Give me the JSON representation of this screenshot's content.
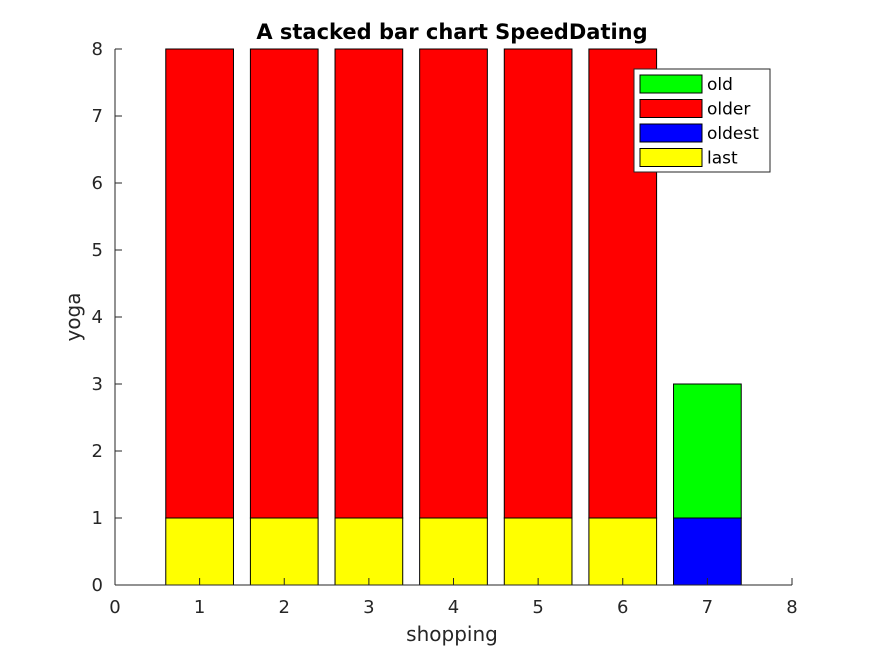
{
  "chart_data": {
    "type": "bar",
    "stacked": true,
    "title": "A stacked bar chart SpeedDating",
    "xlabel": "shopping",
    "ylabel": "yoga",
    "x": [
      1,
      2,
      3,
      4,
      5,
      6,
      7
    ],
    "xlim": [
      0,
      8
    ],
    "ylim": [
      0,
      8
    ],
    "xticks": [
      0,
      1,
      2,
      3,
      4,
      5,
      6,
      7,
      8
    ],
    "yticks": [
      0,
      1,
      2,
      3,
      4,
      5,
      6,
      7,
      8
    ],
    "grid": false,
    "legend_position": "top-right",
    "series": [
      {
        "name": "last",
        "color": "#ffff00",
        "values": [
          1,
          1,
          1,
          1,
          1,
          1,
          0
        ]
      },
      {
        "name": "oldest",
        "color": "#0000ff",
        "values": [
          0,
          0,
          0,
          0,
          0,
          0,
          1
        ]
      },
      {
        "name": "older",
        "color": "#ff0000",
        "values": [
          7,
          7,
          7,
          7,
          7,
          7,
          0
        ]
      },
      {
        "name": "old",
        "color": "#00ff00",
        "values": [
          0,
          0,
          0,
          0,
          0,
          0,
          2
        ]
      }
    ],
    "legend_order": [
      "old",
      "older",
      "oldest",
      "last"
    ]
  }
}
